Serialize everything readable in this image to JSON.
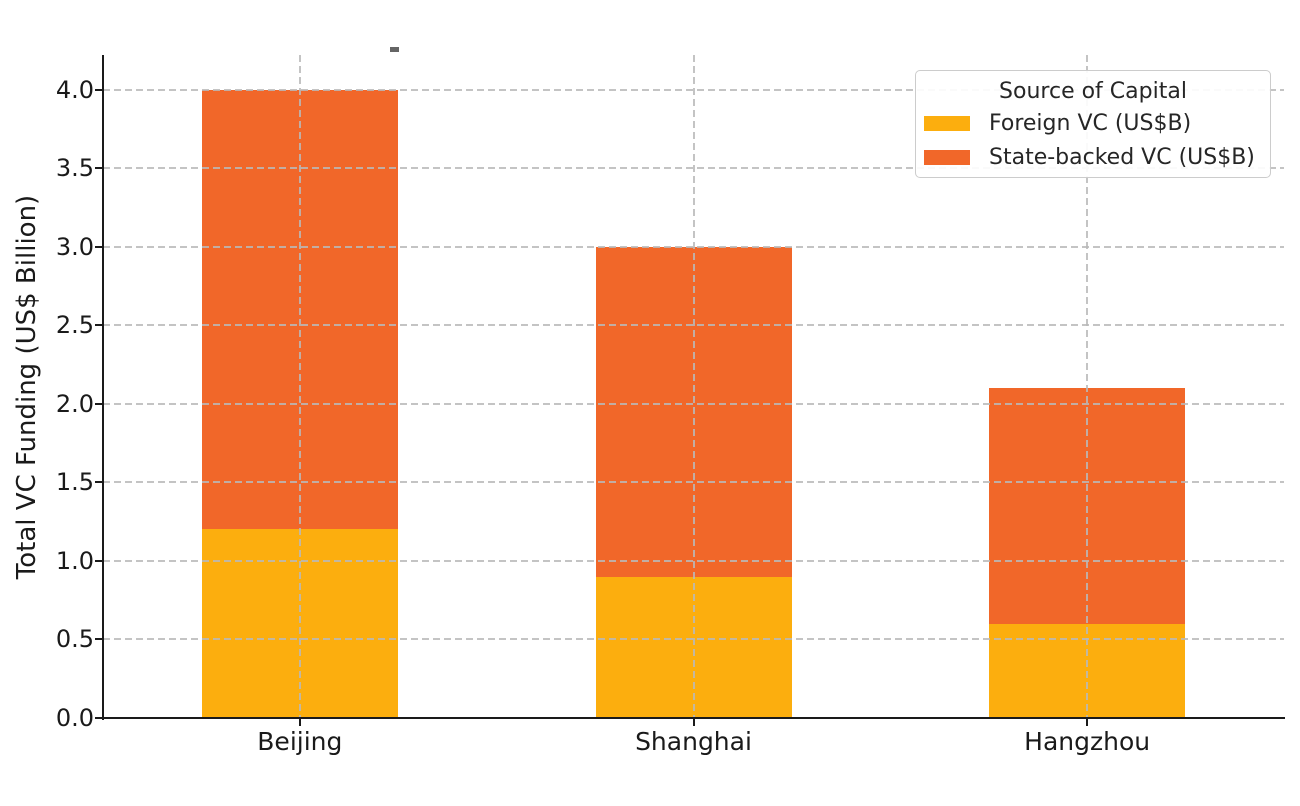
{
  "figure": {
    "background": "#ffffff"
  },
  "legend": {
    "title": "Source of Capital",
    "entries": [
      {
        "label": "Foreign VC (US$B)",
        "color": "#FCAE0E"
      },
      {
        "label": "State-backed VC (US$B)",
        "color": "#F16729"
      }
    ]
  },
  "chart_data": {
    "type": "bar",
    "stacked": true,
    "title": "",
    "categories": [
      "Beijing",
      "Shanghai",
      "Hangzhou"
    ],
    "series": [
      {
        "name": "Foreign VC (US$B)",
        "color": "#FCAE0E",
        "values": [
          1.2,
          0.9,
          0.6
        ]
      },
      {
        "name": "State-backed VC (US$B)",
        "color": "#F16729",
        "values": [
          2.8,
          2.1,
          1.5
        ]
      }
    ],
    "totals": [
      4.0,
      3.0,
      2.1
    ],
    "xlabel": "",
    "ylabel": "Total VC Funding (US$ Billion)",
    "ylim": [
      0,
      4.22
    ],
    "yticks": [
      "0.0",
      "0.5",
      "1.0",
      "1.5",
      "2.0",
      "2.5",
      "3.0",
      "3.5",
      "4.0"
    ],
    "grid": true,
    "grid_style": "dashed",
    "grid_color": "#c8c8c8",
    "legend_title": "Source of Capital",
    "legend_position": "upper right"
  }
}
